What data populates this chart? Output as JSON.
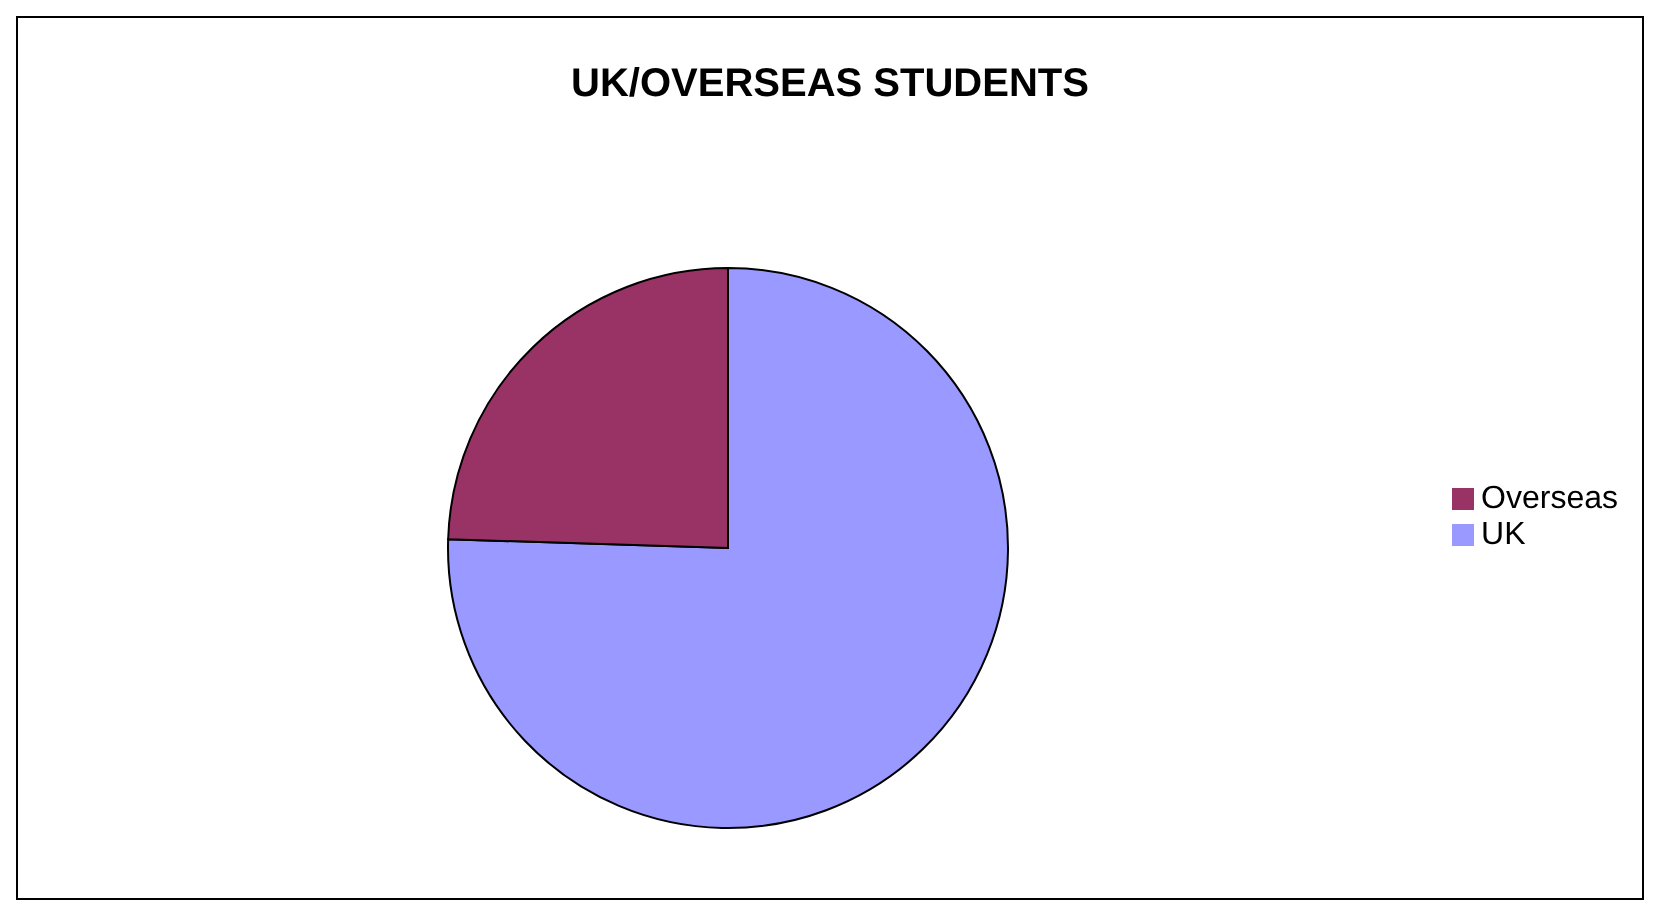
{
  "chart_data": {
    "type": "pie",
    "title": "UK/OVERSEAS STUDENTS",
    "categories": [
      "UK",
      "Overseas"
    ],
    "values": [
      75.5,
      24.5
    ],
    "colors": [
      "#9999ff",
      "#993366"
    ],
    "legend": "right"
  }
}
